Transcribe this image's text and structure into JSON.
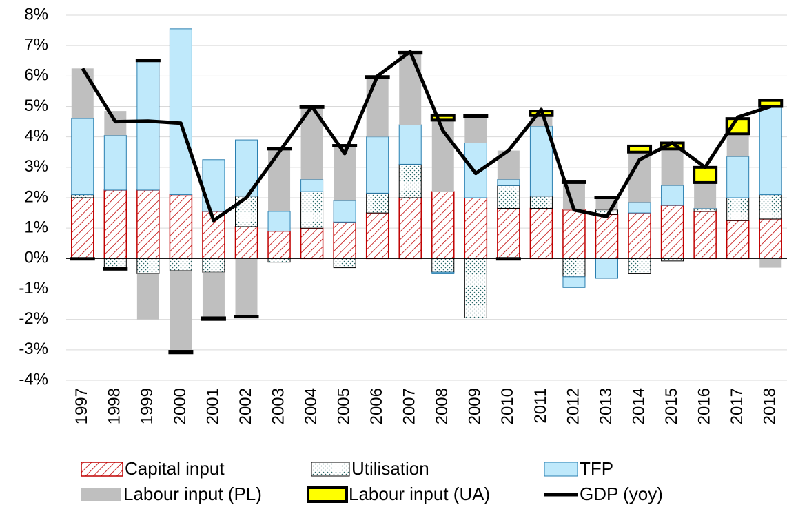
{
  "chart_data": {
    "type": "bar",
    "stacked": true,
    "grid": true,
    "categories": [
      "1997",
      "1998",
      "1999",
      "2000",
      "2001",
      "2002",
      "2003",
      "2004",
      "2005",
      "2006",
      "2007",
      "2008",
      "2009",
      "2010",
      "2011",
      "2012",
      "2013",
      "2014",
      "2015",
      "2016",
      "2017",
      "2018"
    ],
    "ylim": [
      -4,
      8
    ],
    "yticks": [
      {
        "value": -4,
        "label": "-4%"
      },
      {
        "value": -3,
        "label": "-3%"
      },
      {
        "value": -2,
        "label": "-2%"
      },
      {
        "value": -1,
        "label": "-1%"
      },
      {
        "value": 0,
        "label": "0%"
      },
      {
        "value": 1,
        "label": "1%"
      },
      {
        "value": 2,
        "label": "2%"
      },
      {
        "value": 3,
        "label": "3%"
      },
      {
        "value": 4,
        "label": "4%"
      },
      {
        "value": 5,
        "label": "5%"
      },
      {
        "value": 6,
        "label": "6%"
      },
      {
        "value": 7,
        "label": "7%"
      },
      {
        "value": 8,
        "label": "8%"
      }
    ],
    "series": [
      {
        "name": "Capital input",
        "color": "#c00000",
        "pattern": "hatch",
        "values": [
          2.0,
          2.25,
          2.25,
          2.1,
          1.55,
          1.05,
          0.9,
          1.0,
          1.2,
          1.5,
          2.0,
          2.2,
          2.0,
          1.65,
          1.65,
          1.6,
          1.45,
          1.5,
          1.75,
          1.55,
          1.25,
          1.3
        ]
      },
      {
        "name": "Utilisation",
        "color": "#000000",
        "pattern": "dots",
        "values": [
          0.1,
          -0.33,
          -0.5,
          -0.4,
          -0.45,
          1.0,
          -0.12,
          1.2,
          -0.3,
          0.65,
          1.1,
          -0.45,
          -1.95,
          0.75,
          0.4,
          -0.6,
          0.15,
          -0.5,
          -0.08,
          0.1,
          0.75,
          0.8
        ]
      },
      {
        "name": "TFP",
        "color": "#bfe9fb",
        "pattern": "solid",
        "values": [
          2.5,
          1.8,
          4.25,
          5.45,
          1.7,
          1.85,
          0.65,
          0.4,
          0.7,
          1.85,
          1.3,
          -0.05,
          1.8,
          0.2,
          2.3,
          -0.35,
          -0.65,
          0.35,
          0.65,
          0,
          1.35,
          2.9
        ]
      },
      {
        "name": "Labour input (PL)",
        "color": "#bfbfbf",
        "pattern": "solid",
        "values": [
          1.65,
          0.8,
          -1.5,
          -2.65,
          -1.5,
          -1.9,
          2.05,
          2.37,
          1.8,
          1.95,
          2.35,
          2.35,
          0.85,
          0.95,
          0.35,
          0.9,
          0.4,
          1.65,
          1.2,
          0.85,
          0.75,
          -0.3
        ]
      },
      {
        "name": "Labour input (UA)",
        "color": "#ffff00",
        "pattern": "boxed",
        "values": [
          -0.02,
          -0.02,
          0.02,
          -0.05,
          -0.05,
          -0.02,
          0.02,
          0.03,
          0.02,
          0.03,
          0.03,
          0.15,
          0.05,
          -0.02,
          0.15,
          0.02,
          0.02,
          0.2,
          0.2,
          0.5,
          0.5,
          0.2
        ]
      },
      {
        "name": "GDP (yoy)",
        "color": "#000000",
        "type": "line",
        "values": [
          6.25,
          4.5,
          4.52,
          4.45,
          1.25,
          2.0,
          3.5,
          5.0,
          3.45,
          6.0,
          6.8,
          4.2,
          2.8,
          3.55,
          4.9,
          1.6,
          1.38,
          3.25,
          3.8,
          3.0,
          4.65,
          5.0
        ]
      }
    ]
  }
}
